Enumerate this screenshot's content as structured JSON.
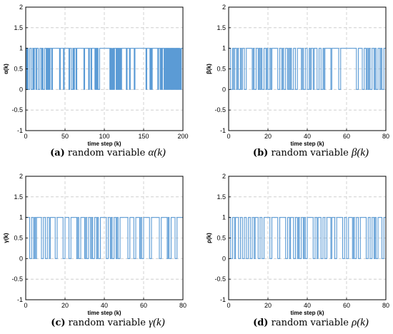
{
  "chart_data": [
    {
      "type": "line",
      "caption_tag": "(a)",
      "caption_text": "random variable",
      "caption_symbol": "α(k)",
      "xlabel": "time step (k)",
      "ylabel": "α(k)",
      "xlim": [
        0,
        200
      ],
      "ylim": [
        -1,
        2
      ],
      "xticks": [
        0,
        50,
        100,
        150,
        200
      ],
      "yticks": [
        -1,
        -0.5,
        0,
        0.5,
        1,
        1.5,
        2
      ],
      "grid": true,
      "line_color": "#5b9bd5",
      "zero_intervals": [
        [
          1,
          2
        ],
        [
          3,
          5
        ],
        [
          7,
          9
        ],
        [
          10,
          11
        ],
        [
          13,
          14
        ],
        [
          16,
          18
        ],
        [
          20,
          21
        ],
        [
          22,
          24
        ],
        [
          26,
          27
        ],
        [
          28,
          29
        ],
        [
          30,
          31
        ],
        [
          33,
          34
        ],
        [
          43,
          44
        ],
        [
          48,
          49
        ],
        [
          55,
          56
        ],
        [
          58,
          60
        ],
        [
          61,
          62
        ],
        [
          64,
          65
        ],
        [
          74,
          75
        ],
        [
          80,
          81
        ],
        [
          83,
          84
        ],
        [
          88,
          89
        ],
        [
          90,
          91
        ],
        [
          92,
          94
        ],
        [
          107,
          108
        ],
        [
          109,
          110
        ],
        [
          110,
          111
        ],
        [
          112,
          113
        ],
        [
          115,
          116
        ],
        [
          117,
          118
        ],
        [
          119,
          120
        ],
        [
          121,
          122
        ],
        [
          128,
          129
        ],
        [
          132,
          133
        ],
        [
          138,
          139
        ],
        [
          153,
          154
        ],
        [
          158,
          159
        ],
        [
          160,
          161
        ],
        [
          168,
          169
        ],
        [
          171,
          172
        ],
        [
          173,
          174
        ],
        [
          176,
          177
        ],
        [
          178,
          179
        ],
        [
          180,
          181
        ],
        [
          182,
          183
        ],
        [
          184,
          185
        ],
        [
          186,
          187
        ],
        [
          188,
          189
        ],
        [
          190,
          191
        ],
        [
          192,
          193
        ],
        [
          194,
          195
        ],
        [
          196,
          197
        ],
        [
          197,
          198
        ]
      ]
    },
    {
      "type": "line",
      "caption_tag": "(b)",
      "caption_text": "random variable",
      "caption_symbol": "β(k)",
      "xlabel": "time step (k)",
      "ylabel": "β(k)",
      "xlim": [
        0,
        80
      ],
      "ylim": [
        -1,
        2
      ],
      "xticks": [
        0,
        20,
        40,
        60,
        80
      ],
      "yticks": [
        -1,
        -0.5,
        0,
        0.5,
        1,
        1.5,
        2
      ],
      "grid": true,
      "line_color": "#5b9bd5",
      "zero_intervals": [
        [
          1,
          2
        ],
        [
          2.5,
          3
        ],
        [
          4,
          4.5
        ],
        [
          5,
          6
        ],
        [
          6.5,
          7
        ],
        [
          8,
          9
        ],
        [
          12,
          12.5
        ],
        [
          13,
          14
        ],
        [
          15,
          15.5
        ],
        [
          16,
          16.5
        ],
        [
          17,
          18
        ],
        [
          19,
          19.5
        ],
        [
          20,
          21
        ],
        [
          21.5,
          22
        ],
        [
          25,
          26
        ],
        [
          27,
          27.5
        ],
        [
          28,
          29
        ],
        [
          30,
          30.5
        ],
        [
          31,
          31.5
        ],
        [
          32,
          33
        ],
        [
          34,
          35
        ],
        [
          37,
          37.5
        ],
        [
          38,
          39
        ],
        [
          40,
          41
        ],
        [
          41.5,
          42
        ],
        [
          43,
          43.5
        ],
        [
          45,
          46
        ],
        [
          47,
          48
        ],
        [
          48.5,
          49
        ],
        [
          52,
          52.5
        ],
        [
          56,
          57
        ],
        [
          65,
          66
        ],
        [
          68,
          69
        ],
        [
          70,
          70.5
        ],
        [
          71,
          71.5
        ],
        [
          72,
          73
        ],
        [
          74,
          74.5
        ],
        [
          75,
          76
        ],
        [
          77,
          77.5
        ],
        [
          78,
          79
        ]
      ]
    },
    {
      "type": "line",
      "caption_tag": "(c)",
      "caption_text": "random variable",
      "caption_symbol": "γ(k)",
      "xlabel": "time step (k)",
      "ylabel": "γ(k)",
      "xlim": [
        0,
        80
      ],
      "ylim": [
        -1,
        2
      ],
      "xticks": [
        0,
        20,
        40,
        60,
        80
      ],
      "yticks": [
        -1,
        -0.5,
        0,
        0.5,
        1,
        1.5,
        2
      ],
      "grid": true,
      "line_color": "#5b9bd5",
      "zero_intervals": [
        [
          2,
          3
        ],
        [
          4,
          4.5
        ],
        [
          5,
          5.5
        ],
        [
          8,
          9
        ],
        [
          10,
          11
        ],
        [
          12,
          12.5
        ],
        [
          15,
          16
        ],
        [
          19,
          20
        ],
        [
          22,
          23
        ],
        [
          26,
          26.5
        ],
        [
          27,
          28
        ],
        [
          30,
          30.5
        ],
        [
          31,
          32
        ],
        [
          33,
          33.5
        ],
        [
          34,
          35
        ],
        [
          36,
          36.5
        ],
        [
          37,
          38
        ],
        [
          41,
          42
        ],
        [
          43,
          43.5
        ],
        [
          44,
          45
        ],
        [
          46,
          46.5
        ],
        [
          47,
          48
        ],
        [
          52,
          53
        ],
        [
          55,
          56
        ],
        [
          58,
          58.5
        ],
        [
          59,
          60
        ],
        [
          63,
          64
        ],
        [
          68,
          69
        ],
        [
          72,
          72.5
        ],
        [
          73,
          74
        ],
        [
          76,
          77
        ]
      ]
    },
    {
      "type": "line",
      "caption_tag": "(d)",
      "caption_text": "random variable",
      "caption_symbol": "ρ(k)",
      "xlabel": "time step (k)",
      "ylabel": "ρ(k)",
      "xlim": [
        0,
        80
      ],
      "ylim": [
        -1,
        2
      ],
      "xticks": [
        0,
        20,
        40,
        60,
        80
      ],
      "yticks": [
        -1,
        -0.5,
        0,
        0.5,
        1,
        1.5,
        2
      ],
      "grid": true,
      "line_color": "#5b9bd5",
      "zero_intervals": [
        [
          1,
          2
        ],
        [
          3,
          3.5
        ],
        [
          5,
          6
        ],
        [
          7,
          8
        ],
        [
          9,
          10
        ],
        [
          11,
          12
        ],
        [
          13,
          13.5
        ],
        [
          15,
          16
        ],
        [
          17,
          18
        ],
        [
          21,
          22
        ],
        [
          25,
          26
        ],
        [
          29,
          30
        ],
        [
          31,
          31.5
        ],
        [
          33,
          34
        ],
        [
          35,
          35.5
        ],
        [
          36,
          37
        ],
        [
          38,
          38.5
        ],
        [
          39,
          40
        ],
        [
          43,
          44
        ],
        [
          45,
          45.5
        ],
        [
          47,
          48
        ],
        [
          49,
          50
        ],
        [
          52,
          52.5
        ],
        [
          54,
          55
        ],
        [
          58,
          59
        ],
        [
          60,
          61
        ],
        [
          63,
          63.5
        ],
        [
          64,
          65
        ],
        [
          66,
          67
        ],
        [
          70,
          71
        ],
        [
          72,
          73
        ],
        [
          74,
          74.5
        ],
        [
          75,
          76
        ],
        [
          78,
          79
        ]
      ]
    }
  ]
}
